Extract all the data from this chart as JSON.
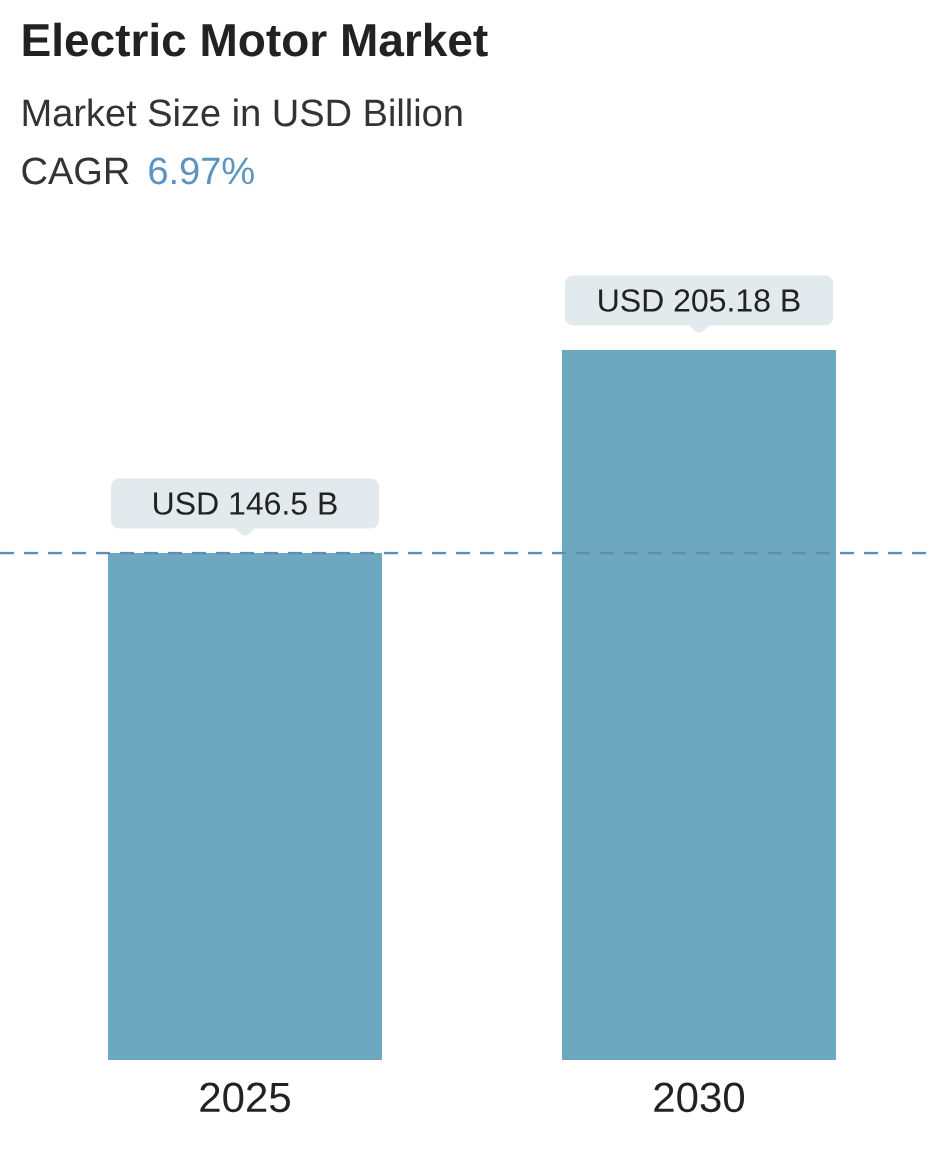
{
  "chart_data": {
    "type": "bar",
    "title": "Electric Motor Market",
    "subtitle": "Market Size in USD Billion",
    "annotations": [
      "CAGR",
      "6.97%"
    ],
    "categories": [
      "2025",
      "2030"
    ],
    "values": [
      146.5,
      205.18
    ],
    "value_labels": [
      "USD 146.5 B",
      "USD 205.18 B"
    ],
    "color": "#6ea8c0",
    "ref_lines": [
      {
        "axis": "y",
        "value": 146.5,
        "color": "#5b8fb6",
        "line_style": "dashed"
      }
    ],
    "tick_labels": "x"
  }
}
